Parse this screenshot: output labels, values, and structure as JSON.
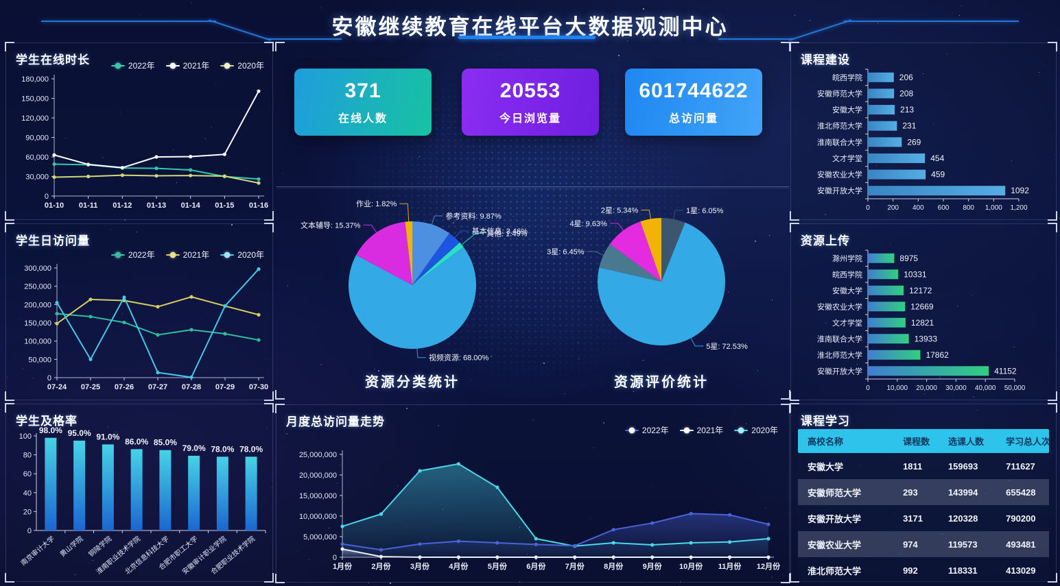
{
  "header": {
    "title": "安徽继续教育在线平台大数据观测中心"
  },
  "stats": {
    "cards": [
      {
        "value": "371",
        "label": "在线人数",
        "bg_from": "#1f9ddd",
        "bg_to": "#17c2a2"
      },
      {
        "value": "20553",
        "label": "今日浏览量",
        "bg_from": "#8a2df2",
        "bg_to": "#6f1ee0"
      },
      {
        "value": "601744622",
        "label": "总访问量",
        "bg_from": "#1e87f2",
        "bg_to": "#42a4f8"
      }
    ]
  },
  "chart_data": [
    {
      "id": "online_duration",
      "type": "line",
      "title": "学生在线时长",
      "legend": [
        {
          "label": "2022年",
          "line": "#2fc9b1",
          "dot": "#2fc9b1"
        },
        {
          "label": "2021年",
          "line": "#ffffff",
          "dot": "#ffffff"
        },
        {
          "label": "2020年",
          "line": "#cfd87a",
          "dot": "#f2f2cf"
        }
      ],
      "categories": [
        "01-10",
        "01-11",
        "01-12",
        "01-13",
        "01-14",
        "01-15",
        "01-16"
      ],
      "series": [
        {
          "name": "2022年",
          "color": "#2fc9b1",
          "values": [
            49000,
            48000,
            43000,
            42500,
            40000,
            30000,
            26000
          ]
        },
        {
          "name": "2021年",
          "color": "#ffffff",
          "values": [
            63000,
            48500,
            43500,
            60000,
            60500,
            64000,
            161000
          ]
        },
        {
          "name": "2020年",
          "color": "#cfd87a",
          "values": [
            29000,
            30000,
            32000,
            31000,
            31500,
            30500,
            20000
          ]
        }
      ],
      "ymax": 180000,
      "yticks": [
        "180,000",
        "150,000",
        "120,000",
        "90,000",
        "60,000",
        "30,000",
        "0"
      ]
    },
    {
      "id": "daily_visits",
      "type": "line",
      "title": "学生日访问量",
      "legend": [
        {
          "label": "2022年",
          "line": "#2fbf9f",
          "dot": "#2fbf9f"
        },
        {
          "label": "2021年",
          "line": "#d6cf5e",
          "dot": "#e8e18a"
        },
        {
          "label": "2020年",
          "line": "#45c8e8",
          "dot": "#9fe6f5"
        }
      ],
      "categories": [
        "07-24",
        "07-25",
        "07-26",
        "07-27",
        "07-28",
        "07-29",
        "07-30"
      ],
      "series": [
        {
          "name": "2022年",
          "color": "#2fbf9f",
          "values": [
            175000,
            167000,
            151000,
            117000,
            131000,
            120000,
            103000
          ]
        },
        {
          "name": "2021年",
          "color": "#d6cf5e",
          "values": [
            148000,
            214000,
            211000,
            194000,
            221000,
            196000,
            172000
          ]
        },
        {
          "name": "2020年",
          "color": "#45c8e8",
          "values": [
            205000,
            50000,
            220000,
            14000,
            1000,
            196000,
            297000
          ]
        }
      ],
      "ymax": 300000,
      "yticks": [
        "300,000",
        "250,000",
        "200,000",
        "150,000",
        "100,000",
        "50,000",
        "0"
      ]
    },
    {
      "id": "pass_rate",
      "type": "bar",
      "title": "学生及格率",
      "categories": [
        "南京审计大学",
        "黄山学院",
        "铜陵学院",
        "淮南职业技术学院",
        "北京信息科技大学",
        "合肥市职工大学",
        "安徽审计职业学院",
        "合肥职业技术学院"
      ],
      "values": [
        98,
        95,
        91,
        86,
        85,
        79,
        78,
        78
      ],
      "value_labels": [
        "98.0%",
        "95.0%",
        "91.0%",
        "86.0%",
        "85.0%",
        "79.0%",
        "78.0%",
        "78.0%"
      ],
      "ymax": 100,
      "yticks": [
        "100",
        "80",
        "60",
        "40",
        "20",
        "0"
      ],
      "bar_top": "#46d3e6",
      "bar_bottom": "#1b66d1"
    },
    {
      "id": "course_construction",
      "type": "bar-horizontal",
      "title": "课程建设",
      "categories": [
        "皖西学院",
        "安徽师范大学",
        "安徽大学",
        "淮北师范大学",
        "淮南联合大学",
        "文才学堂",
        "安徽农业大学",
        "安徽开放大学"
      ],
      "values": [
        206,
        208,
        213,
        231,
        269,
        454,
        459,
        1092
      ],
      "xmax": 1200,
      "xticks": [
        "0",
        "200",
        "400",
        "600",
        "800",
        "1,000",
        "1,200"
      ],
      "bar_from": "#3a85c4",
      "bar_to": "#55aee5"
    },
    {
      "id": "resource_upload",
      "type": "bar-horizontal",
      "title": "资源上传",
      "categories": [
        "滁州学院",
        "皖西学院",
        "安徽大学",
        "安徽农业大学",
        "文才学堂",
        "淮南联合大学",
        "淮北师范大学",
        "安徽开放大学"
      ],
      "values": [
        8975,
        10331,
        12172,
        12669,
        12821,
        13933,
        17862,
        41152
      ],
      "xmax": 50000,
      "xticks": [
        "0",
        "10,000",
        "20,000",
        "30,000",
        "40,000",
        "50,000"
      ],
      "bar_from": "#3f7fd0",
      "bar_to": "#30d080"
    },
    {
      "id": "resource_category",
      "type": "pie",
      "title": "资源分类统计",
      "slices": [
        {
          "name": "参考资料",
          "pct": 9.87,
          "color": "#4d8fe0"
        },
        {
          "name": "基本信息",
          "pct": 3.46,
          "color": "#1d55e0"
        },
        {
          "name": "其他",
          "pct": 1.49,
          "color": "#2adfc4"
        },
        {
          "name": "视频资源",
          "pct": 68.0,
          "color": "#33a9e5"
        },
        {
          "name": "文本辅导",
          "pct": 15.37,
          "color": "#d92ce0"
        },
        {
          "name": "作业",
          "pct": 1.82,
          "color": "#f2b307"
        }
      ]
    },
    {
      "id": "resource_rating",
      "type": "pie",
      "title": "资源评价统计",
      "slices": [
        {
          "name": "1星",
          "pct": 6.05,
          "color": "#3c5670"
        },
        {
          "name": "5星",
          "pct": 72.53,
          "color": "#33a9e5"
        },
        {
          "name": "3星",
          "pct": 6.45,
          "color": "#49798e"
        },
        {
          "name": "4星",
          "pct": 9.63,
          "color": "#e32ce0"
        },
        {
          "name": "2星",
          "pct": 5.34,
          "color": "#f2b307"
        }
      ]
    },
    {
      "id": "monthly_visits",
      "type": "area",
      "title": "月度总访问量走势",
      "legend": [
        {
          "label": "2022年",
          "line": "#4a63d8",
          "dot": "#ffffff"
        },
        {
          "label": "2021年",
          "line": "#e8eefc",
          "dot": "#ffffff"
        },
        {
          "label": "2020年",
          "line": "#49d8e8",
          "dot": "#9ff0f8"
        }
      ],
      "categories": [
        "1月份",
        "2月份",
        "3月份",
        "4月份",
        "5月份",
        "6月份",
        "7月份",
        "8月份",
        "9月份",
        "10月份",
        "11月份",
        "12月份"
      ],
      "series": [
        {
          "name": "2020年",
          "color": "#49d8e8",
          "fill": true,
          "values": [
            7500000,
            10500000,
            21000000,
            22700000,
            17000000,
            4500000,
            2700000,
            3500000,
            3000000,
            3500000,
            3700000,
            4500000
          ]
        },
        {
          "name": "2022年",
          "color": "#4a63d8",
          "fill": true,
          "values": [
            3200000,
            1800000,
            3200000,
            3900000,
            3500000,
            3100000,
            2800000,
            6700000,
            8300000,
            10600000,
            10300000,
            8000000
          ]
        },
        {
          "name": "2021年",
          "color": "#e8eefc",
          "fill": true,
          "values": [
            2000000,
            150000,
            0,
            0,
            0,
            0,
            0,
            0,
            0,
            0,
            0,
            0
          ]
        }
      ],
      "ymax": 25000000,
      "yticks": [
        "25,000,000",
        "20,000,000",
        "15,000,000",
        "10,000,000",
        "5,000,000",
        "0"
      ]
    },
    {
      "id": "course_learning",
      "type": "table",
      "title": "课程学习",
      "headers": [
        "高校名称",
        "课程数",
        "选课人数",
        "学习总人次"
      ],
      "rows": [
        [
          "安徽大学",
          "1811",
          "159693",
          "711627"
        ],
        [
          "安徽师范大学",
          "293",
          "143994",
          "655428"
        ],
        [
          "安徽开放大学",
          "3171",
          "120328",
          "790200"
        ],
        [
          "安徽农业大学",
          "974",
          "119573",
          "493481"
        ],
        [
          "淮北师范大学",
          "992",
          "118331",
          "413029"
        ]
      ]
    }
  ]
}
